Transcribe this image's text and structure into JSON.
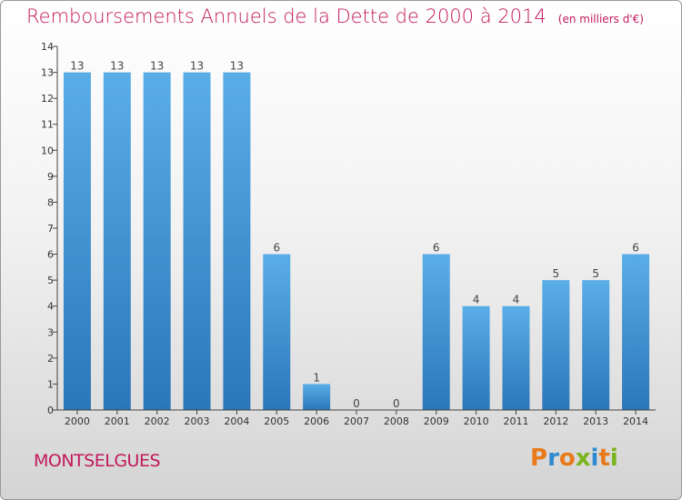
{
  "header": {
    "title": "Remboursements Annuels de la Dette de 2000 à 2014",
    "unit": "(en milliers d'€)"
  },
  "footer": {
    "commune": "MONTSELGUES",
    "logo": "Proxiti"
  },
  "colors": {
    "title": "#c2185b",
    "bar_top": "#5aaee8",
    "bar_bottom": "#2b76b8",
    "logo_letters": [
      "#e87a1c",
      "#2f8bd0",
      "#e87a1c",
      "#7ab51d",
      "#2f8bd0",
      "#e87a1c",
      "#7ab51d"
    ]
  },
  "chart_data": {
    "type": "bar",
    "categories": [
      "2000",
      "2001",
      "2002",
      "2003",
      "2004",
      "2005",
      "2006",
      "2007",
      "2008",
      "2009",
      "2010",
      "2011",
      "2012",
      "2013",
      "2014"
    ],
    "values": [
      13,
      13,
      13,
      13,
      13,
      6,
      1,
      0,
      0,
      6,
      4,
      4,
      5,
      5,
      6
    ],
    "data_labels": [
      "13",
      "13",
      "13",
      "13",
      "13",
      "6",
      "1",
      "0",
      "0",
      "6",
      "4",
      "4",
      "5",
      "5",
      "6"
    ],
    "yticks": [
      "0",
      "1",
      "2",
      "3",
      "4",
      "5",
      "6",
      "7",
      "8",
      "9",
      "10",
      "11",
      "12",
      "13",
      "14"
    ],
    "title": "Remboursements Annuels de la Dette de 2000 à 2014",
    "xlabel": "",
    "ylabel": "",
    "ylim": [
      0,
      14
    ],
    "grid": false,
    "legend": "none"
  }
}
